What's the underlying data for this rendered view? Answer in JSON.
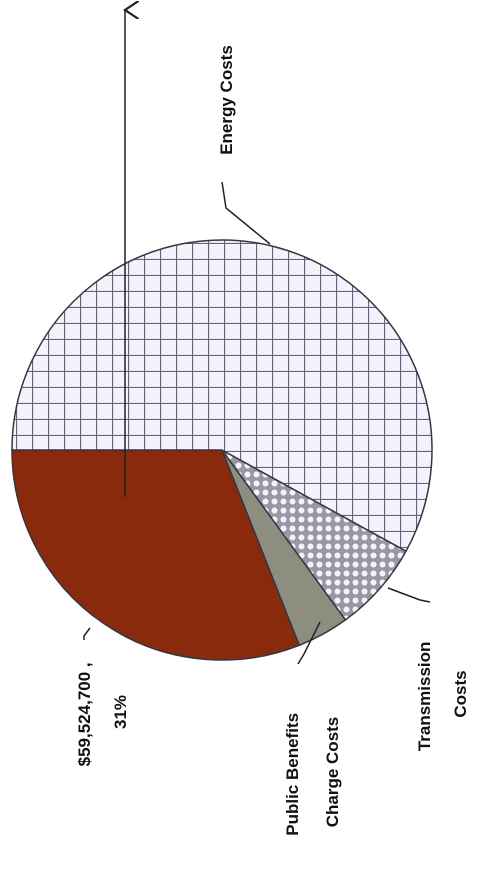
{
  "chart_data": {
    "type": "pie",
    "categories": [
      "Energy Costs",
      "Transmission Costs",
      "Public Benefits Charge Costs",
      null
    ],
    "values": [
      58,
      7,
      4,
      31
    ],
    "value_labels": [
      null,
      null,
      null,
      "$59,524,700 , 31%"
    ],
    "colors": [
      "#ffffff",
      "#ffffff",
      "#8e8e80",
      "#8a2a0c"
    ],
    "patterns": [
      "grid",
      "dots",
      null,
      null
    ]
  }
}
